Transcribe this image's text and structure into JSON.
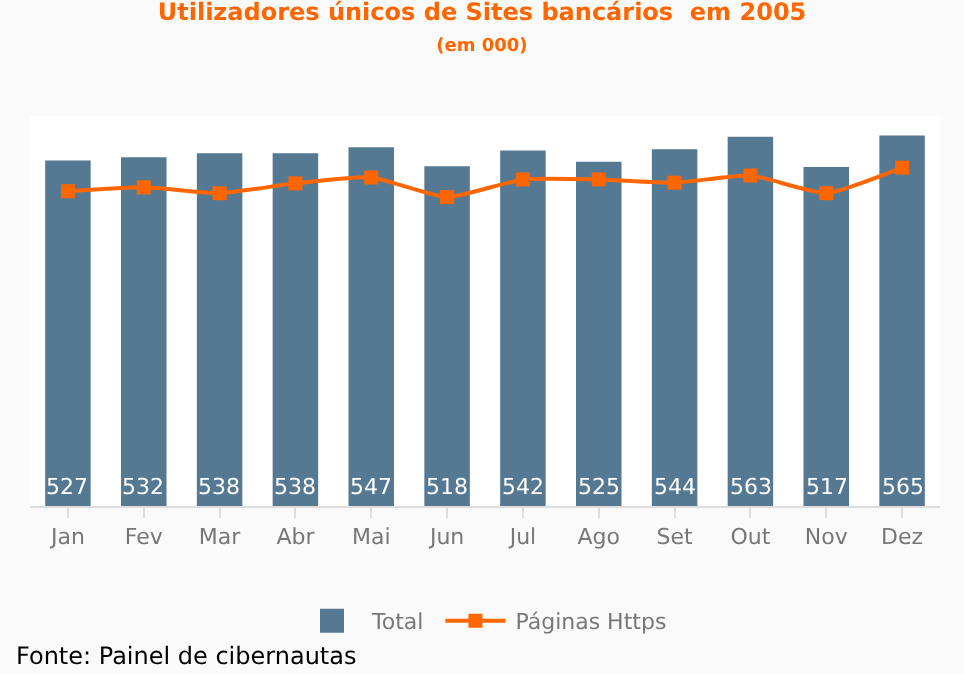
{
  "chart_data": {
    "type": "bar",
    "title": "Utilizadores únicos de Sites bancários  em 2005",
    "subtitle": "(em 000)",
    "categories": [
      "Jan",
      "Fev",
      "Mar",
      "Abr",
      "Mai",
      "Jun",
      "Jul",
      "Ago",
      "Set",
      "Out",
      "Nov",
      "Dez"
    ],
    "series": [
      {
        "name": "Total",
        "color": "#557893",
        "values": [
          527,
          532,
          538,
          538,
          547,
          518,
          542,
          525,
          544,
          563,
          517,
          565
        ],
        "value_labels": [
          "527",
          "532",
          "538",
          "538",
          "547",
          "518",
          "542",
          "525",
          "544",
          "563",
          "517",
          "565"
        ]
      },
      {
        "name": "Páginas Https",
        "type": "line",
        "color": "#ff6600",
        "values": [
          480,
          486,
          477,
          492,
          501,
          471,
          498,
          498,
          493,
          504,
          477,
          516
        ]
      }
    ],
    "tick_labels": "x",
    "grid": false,
    "legend": "bottom",
    "marker": "square",
    "annotations": [
      "Fonte: Painel de cibernautas"
    ]
  }
}
